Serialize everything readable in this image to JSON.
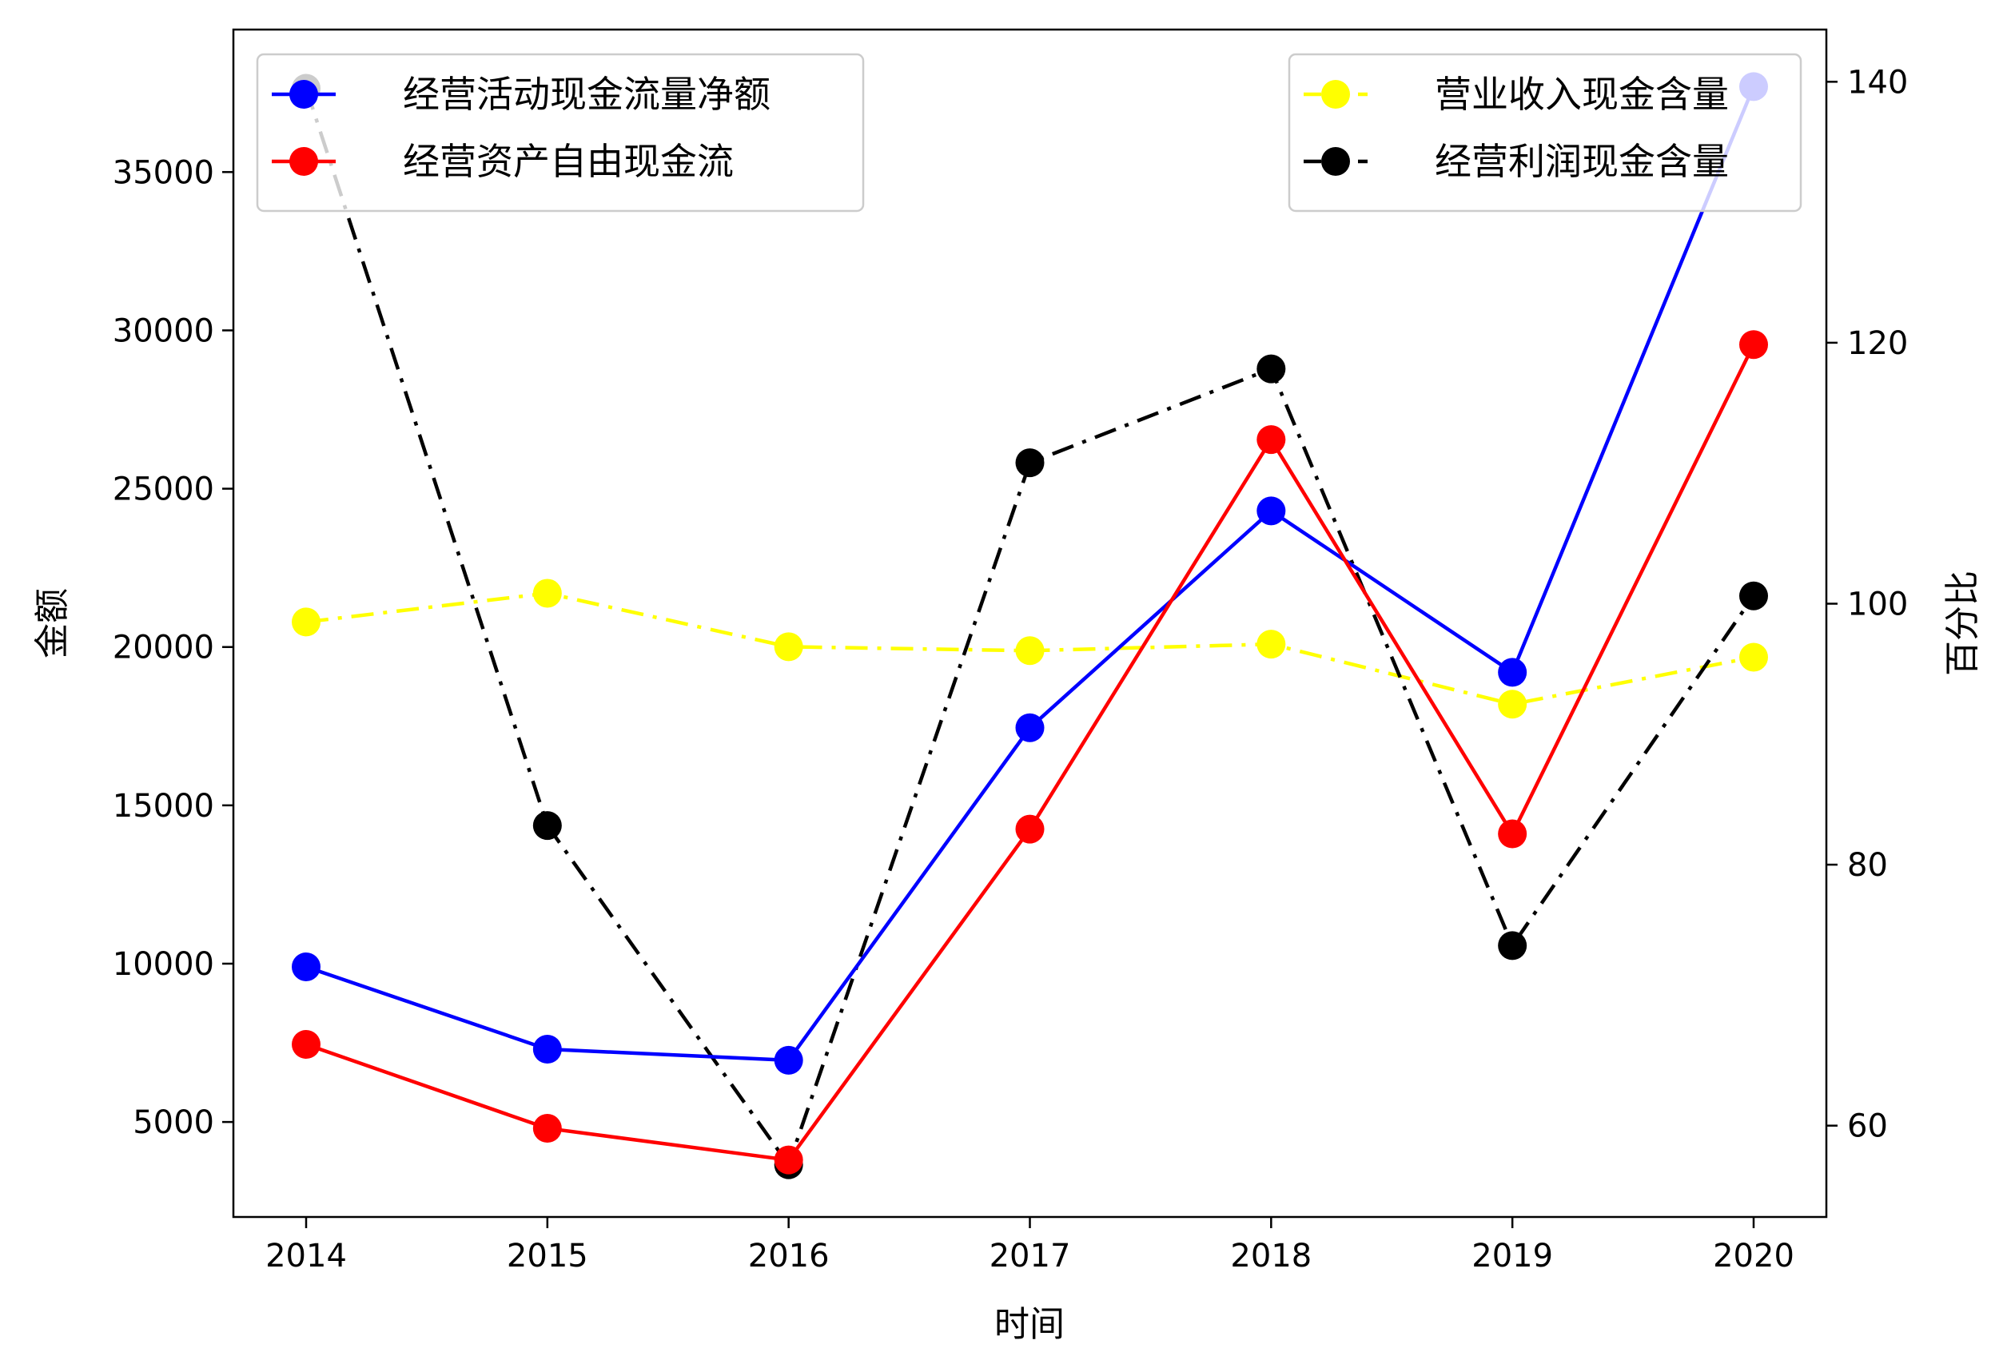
{
  "chart_data": {
    "type": "line",
    "x": [
      "2014",
      "2015",
      "2016",
      "2017",
      "2018",
      "2019",
      "2020"
    ],
    "xlabel": "时间",
    "ylabel_left": "金额",
    "ylabel_right": "百分比",
    "ylim_left": [
      2000,
      39500
    ],
    "ylim_right": [
      53,
      144
    ],
    "yticks_left": [
      5000,
      10000,
      15000,
      20000,
      25000,
      30000,
      35000
    ],
    "yticks_right": [
      60,
      80,
      100,
      120,
      140
    ],
    "grid": false,
    "series": [
      {
        "name": "经营活动现金流量净额",
        "axis": "left",
        "color": "#0000ff",
        "linestyle": "solid",
        "values": [
          9900,
          7300,
          6950,
          17450,
          24300,
          19200,
          37700
        ]
      },
      {
        "name": "经营资产自由现金流",
        "axis": "left",
        "color": "#ff0000",
        "linestyle": "solid",
        "values": [
          7450,
          4800,
          3800,
          14250,
          26550,
          14100,
          29550
        ]
      },
      {
        "name": "营业收入现金含量",
        "axis": "right",
        "color": "#ffff00",
        "linestyle": "dashdot",
        "values": [
          98.6,
          100.8,
          96.7,
          96.4,
          96.9,
          92.3,
          95.9
        ]
      },
      {
        "name": "经营利润现金含量",
        "axis": "right",
        "color": "#000000",
        "linestyle": "dashdot",
        "values": [
          139.5,
          83.0,
          57.0,
          110.8,
          118.0,
          73.8,
          100.6
        ]
      }
    ],
    "legends": [
      {
        "placement": "top-left",
        "entries": [
          "经营活动现金流量净额",
          "经营资产自由现金流"
        ]
      },
      {
        "placement": "top-right",
        "entries": [
          "营业收入现金含量",
          "经营利润现金含量"
        ]
      }
    ]
  }
}
